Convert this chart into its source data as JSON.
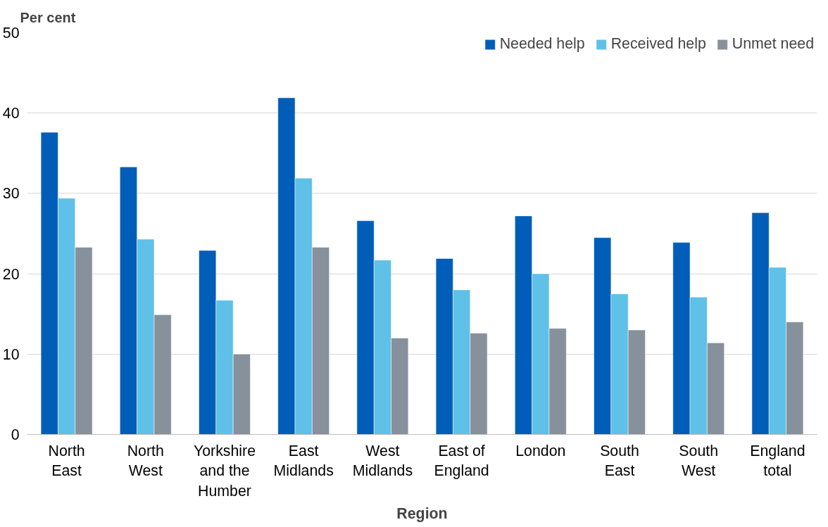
{
  "chart_data": {
    "type": "bar",
    "xlabel": "Region",
    "ylabel": "Per cent",
    "categories": [
      "North East",
      "North West",
      "Yorkshire and the Humber",
      "East Midlands",
      "West Midlands",
      "East of England",
      "London",
      "South East",
      "South West",
      "England total"
    ],
    "series": [
      {
        "name": "Needed help",
        "color": "#005eb8",
        "values": [
          37.6,
          33.3,
          22.9,
          41.9,
          26.6,
          21.9,
          27.2,
          24.5,
          23.9,
          27.6
        ]
      },
      {
        "name": "Received help",
        "color": "#5fc0e8",
        "values": [
          29.4,
          24.3,
          16.7,
          31.9,
          21.7,
          18.0,
          20.0,
          17.5,
          17.1,
          20.8
        ]
      },
      {
        "name": "Unmet need",
        "color": "#86919b",
        "values": [
          23.3,
          14.9,
          10.0,
          23.3,
          12.0,
          12.6,
          13.2,
          13.0,
          11.4,
          14.0
        ]
      }
    ],
    "ylim": [
      0,
      50
    ],
    "yticks": [
      0,
      10,
      20,
      30,
      40,
      50
    ],
    "grid": "y",
    "legend": "top right"
  }
}
